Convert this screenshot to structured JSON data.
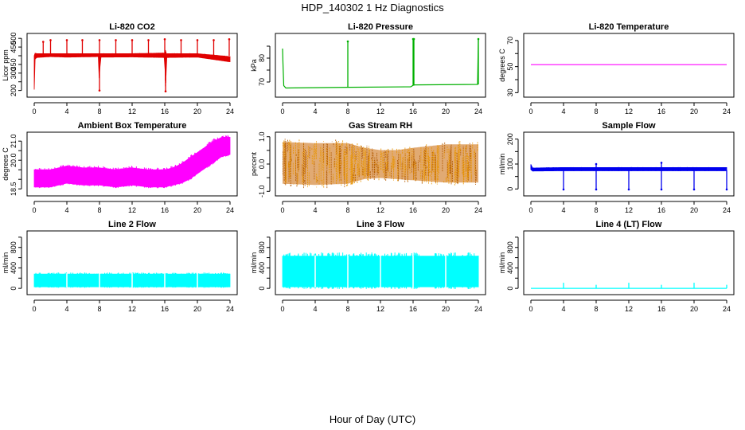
{
  "page": {
    "title": "HDP_140302  1 Hz Diagnostics",
    "xlabel": "Hour of Day (UTC)"
  },
  "chart_data": [
    {
      "type": "line",
      "title": "Li-820 CO2",
      "ylabel": "Licor ppm",
      "color": "#e00000",
      "style": "band",
      "xlim": [
        0,
        24
      ],
      "xticks": [
        0,
        4,
        8,
        12,
        16,
        20,
        24
      ],
      "ylim": [
        180,
        510
      ],
      "yticks": [
        200,
        250,
        300,
        350,
        400,
        450,
        500
      ],
      "ytick_labels": [
        "200",
        "",
        "300",
        "350",
        "",
        "450",
        "500"
      ],
      "series": [
        {
          "x": [
            0,
            0.1,
            0.3,
            2,
            4,
            7.9,
            8,
            8.1,
            12,
            16,
            16.1,
            16.2,
            20,
            24
          ],
          "lower": [
            205,
            380,
            390,
            395,
            392,
            395,
            200,
            392,
            393,
            390,
            195,
            390,
            392,
            365
          ],
          "upper": [
            400,
            415,
            412,
            412,
            412,
            412,
            412,
            412,
            412,
            415,
            412,
            412,
            412,
            395
          ]
        }
      ],
      "spikes": [
        {
          "x": 1.1,
          "from": 400,
          "to": 480
        },
        {
          "x": 2.0,
          "from": 400,
          "to": 490
        },
        {
          "x": 4.0,
          "from": 400,
          "to": 490
        },
        {
          "x": 5.9,
          "from": 400,
          "to": 490
        },
        {
          "x": 8.0,
          "from": 400,
          "to": 490
        },
        {
          "x": 10.0,
          "from": 400,
          "to": 490
        },
        {
          "x": 12.0,
          "from": 400,
          "to": 490
        },
        {
          "x": 14.0,
          "from": 400,
          "to": 490
        },
        {
          "x": 16.0,
          "from": 400,
          "to": 495
        },
        {
          "x": 18.0,
          "from": 400,
          "to": 490
        },
        {
          "x": 20.0,
          "from": 400,
          "to": 490
        },
        {
          "x": 22.0,
          "from": 400,
          "to": 490
        },
        {
          "x": 23.9,
          "from": 400,
          "to": 495
        },
        {
          "x": 8.0,
          "from": 400,
          "to": 200
        },
        {
          "x": 16.1,
          "from": 400,
          "to": 195
        }
      ]
    },
    {
      "type": "line",
      "title": "Li-820 Pressure",
      "ylabel": "kPa",
      "color": "#00b000",
      "style": "line",
      "xlim": [
        0,
        24
      ],
      "xticks": [
        0,
        4,
        8,
        12,
        16,
        20,
        24
      ],
      "ylim": [
        65,
        89
      ],
      "yticks": [
        70,
        75,
        80,
        85
      ],
      "ytick_labels": [
        "70",
        "",
        "80",
        ""
      ],
      "series": [
        {
          "x": [
            0,
            0.05,
            0.15,
            0.4,
            8,
            15.7,
            16,
            16.2,
            23.9,
            24
          ],
          "y": [
            84,
            78,
            68.5,
            67.5,
            67.8,
            68.0,
            68.6,
            68.8,
            69.0,
            88
          ]
        }
      ],
      "spikes": [
        {
          "x": 8.0,
          "from": 67.8,
          "to": 87
        },
        {
          "x": 16.0,
          "from": 68.5,
          "to": 88
        },
        {
          "x": 16.1,
          "from": 68.5,
          "to": 88
        },
        {
          "x": 24.0,
          "from": 69.0,
          "to": 88
        }
      ]
    },
    {
      "type": "line",
      "title": "Li-820 Temperature",
      "ylabel": "degrees C",
      "color": "#ff00ff",
      "style": "line",
      "xlim": [
        0,
        24
      ],
      "xticks": [
        0,
        4,
        8,
        12,
        16,
        20,
        24
      ],
      "ylim": [
        29,
        73
      ],
      "yticks": [
        30,
        40,
        50,
        60,
        70
      ],
      "ytick_labels": [
        "30",
        "",
        "50",
        "",
        "70"
      ],
      "series": [
        {
          "x": [
            0,
            24
          ],
          "y": [
            51.5,
            51.5
          ]
        }
      ],
      "spikes": []
    },
    {
      "type": "line",
      "title": "Ambient Box Temperature",
      "ylabel": "degrees C",
      "color": "#ff00ff",
      "style": "band",
      "xlim": [
        0,
        24
      ],
      "xticks": [
        0,
        4,
        8,
        12,
        16,
        20,
        24
      ],
      "ylim": [
        18.3,
        21.3
      ],
      "yticks": [
        18.5,
        19.0,
        19.5,
        20.0,
        20.5,
        21.0
      ],
      "ytick_labels": [
        "18.5",
        "",
        "",
        "20.0",
        "",
        "21.0"
      ],
      "series": [
        {
          "x": [
            0,
            2,
            4,
            6,
            8,
            10,
            12,
            14,
            16,
            17,
            18,
            19,
            20,
            21,
            22,
            23,
            24
          ],
          "lower": [
            18.6,
            18.6,
            18.8,
            18.7,
            18.7,
            18.6,
            18.7,
            18.6,
            18.6,
            18.7,
            18.8,
            19.0,
            19.3,
            19.6,
            19.9,
            20.2,
            20.3
          ],
          "upper": [
            19.5,
            19.5,
            19.7,
            19.6,
            19.6,
            19.5,
            19.6,
            19.5,
            19.5,
            19.6,
            19.8,
            20.1,
            20.4,
            20.7,
            21.0,
            21.2,
            21.2
          ]
        }
      ],
      "spikes": []
    },
    {
      "type": "line",
      "title": "Gas Stream RH",
      "ylabel": "percent",
      "color": "#e89400",
      "style": "noise",
      "xlim": [
        0,
        24
      ],
      "xticks": [
        0,
        4,
        8,
        12,
        16,
        20,
        24
      ],
      "ylim": [
        -1.05,
        1.05
      ],
      "yticks": [
        -1.0,
        -0.5,
        0.0,
        0.5,
        1.0
      ],
      "ytick_labels": [
        "-1.0",
        "",
        "0.0",
        "",
        "1.0"
      ],
      "series": [
        {
          "x": [
            0,
            4,
            8,
            10,
            12,
            14,
            16,
            20,
            24
          ],
          "lower": [
            -0.85,
            -0.9,
            -0.85,
            -0.65,
            -0.6,
            -0.65,
            -0.7,
            -0.8,
            -0.8
          ],
          "upper": [
            0.95,
            0.9,
            0.9,
            0.7,
            0.6,
            0.6,
            0.7,
            0.85,
            0.85
          ]
        }
      ],
      "spikes": []
    },
    {
      "type": "line",
      "title": "Sample Flow",
      "ylabel": "ml/min",
      "color": "#0000ee",
      "style": "band",
      "xlim": [
        0,
        24
      ],
      "xticks": [
        0,
        4,
        8,
        12,
        16,
        20,
        24
      ],
      "ylim": [
        -15,
        215
      ],
      "yticks": [
        0,
        50,
        100,
        150,
        200
      ],
      "ytick_labels": [
        "0",
        "",
        "100",
        "",
        "200"
      ],
      "series": [
        {
          "x": [
            0,
            0.2,
            4,
            8,
            12,
            16,
            20,
            24
          ],
          "lower": [
            78,
            72,
            73,
            73,
            73,
            73,
            73,
            73
          ],
          "upper": [
            98,
            84,
            86,
            86,
            86,
            86,
            86,
            86
          ]
        }
      ],
      "spikes": [
        {
          "x": 4,
          "from": 75,
          "to": -2
        },
        {
          "x": 8,
          "from": 75,
          "to": -2
        },
        {
          "x": 12,
          "from": 75,
          "to": -2
        },
        {
          "x": 16,
          "from": 75,
          "to": -2
        },
        {
          "x": 20,
          "from": 75,
          "to": -2
        },
        {
          "x": 24,
          "from": 75,
          "to": -2
        },
        {
          "x": 8,
          "from": 86,
          "to": 100
        },
        {
          "x": 16,
          "from": 86,
          "to": 105
        }
      ]
    },
    {
      "type": "line",
      "title": "Line 2 Flow",
      "ylabel": "ml/min",
      "color": "#00ffff",
      "style": "band",
      "xlim": [
        0,
        24
      ],
      "xticks": [
        0,
        4,
        8,
        12,
        16,
        20,
        24
      ],
      "ylim": [
        -60,
        1060
      ],
      "yticks": [
        0,
        200,
        400,
        600,
        800,
        1000
      ],
      "ytick_labels": [
        "0",
        "",
        "400",
        "",
        "800",
        ""
      ],
      "series": [
        {
          "x": [
            0,
            24
          ],
          "lower": [
            30,
            30
          ],
          "upper": [
            280,
            280
          ]
        }
      ],
      "gaps": [
        4,
        8,
        12,
        16,
        20
      ],
      "spikes": []
    },
    {
      "type": "line",
      "title": "Line 3 Flow",
      "ylabel": "ml/min",
      "color": "#00ffff",
      "style": "band",
      "xlim": [
        0,
        24
      ],
      "xticks": [
        0,
        4,
        8,
        12,
        16,
        20,
        24
      ],
      "ylim": [
        -60,
        1060
      ],
      "yticks": [
        0,
        200,
        400,
        600,
        800,
        1000
      ],
      "ytick_labels": [
        "0",
        "",
        "400",
        "",
        "800",
        ""
      ],
      "series": [
        {
          "x": [
            0,
            24
          ],
          "lower": [
            30,
            30
          ],
          "upper": [
            630,
            630
          ]
        }
      ],
      "gaps": [
        4,
        8,
        12,
        16,
        20
      ],
      "spikes": []
    },
    {
      "type": "line",
      "title": "Line 4 (LT) Flow",
      "ylabel": "ml/min",
      "color": "#00ffff",
      "style": "line",
      "xlim": [
        0,
        24
      ],
      "xticks": [
        0,
        4,
        8,
        12,
        16,
        20,
        24
      ],
      "ylim": [
        -60,
        1060
      ],
      "yticks": [
        0,
        200,
        400,
        600,
        800,
        1000
      ],
      "ytick_labels": [
        "0",
        "",
        "400",
        "",
        "800",
        ""
      ],
      "series": [
        {
          "x": [
            0,
            24
          ],
          "y": [
            0,
            0
          ]
        }
      ],
      "spikes": [
        {
          "x": 4,
          "from": 0,
          "to": 110
        },
        {
          "x": 8,
          "from": 0,
          "to": 70
        },
        {
          "x": 12,
          "from": 0,
          "to": 110
        },
        {
          "x": 16,
          "from": 0,
          "to": 70
        },
        {
          "x": 20,
          "from": 0,
          "to": 110
        },
        {
          "x": 24,
          "from": 0,
          "to": 70
        }
      ]
    }
  ]
}
